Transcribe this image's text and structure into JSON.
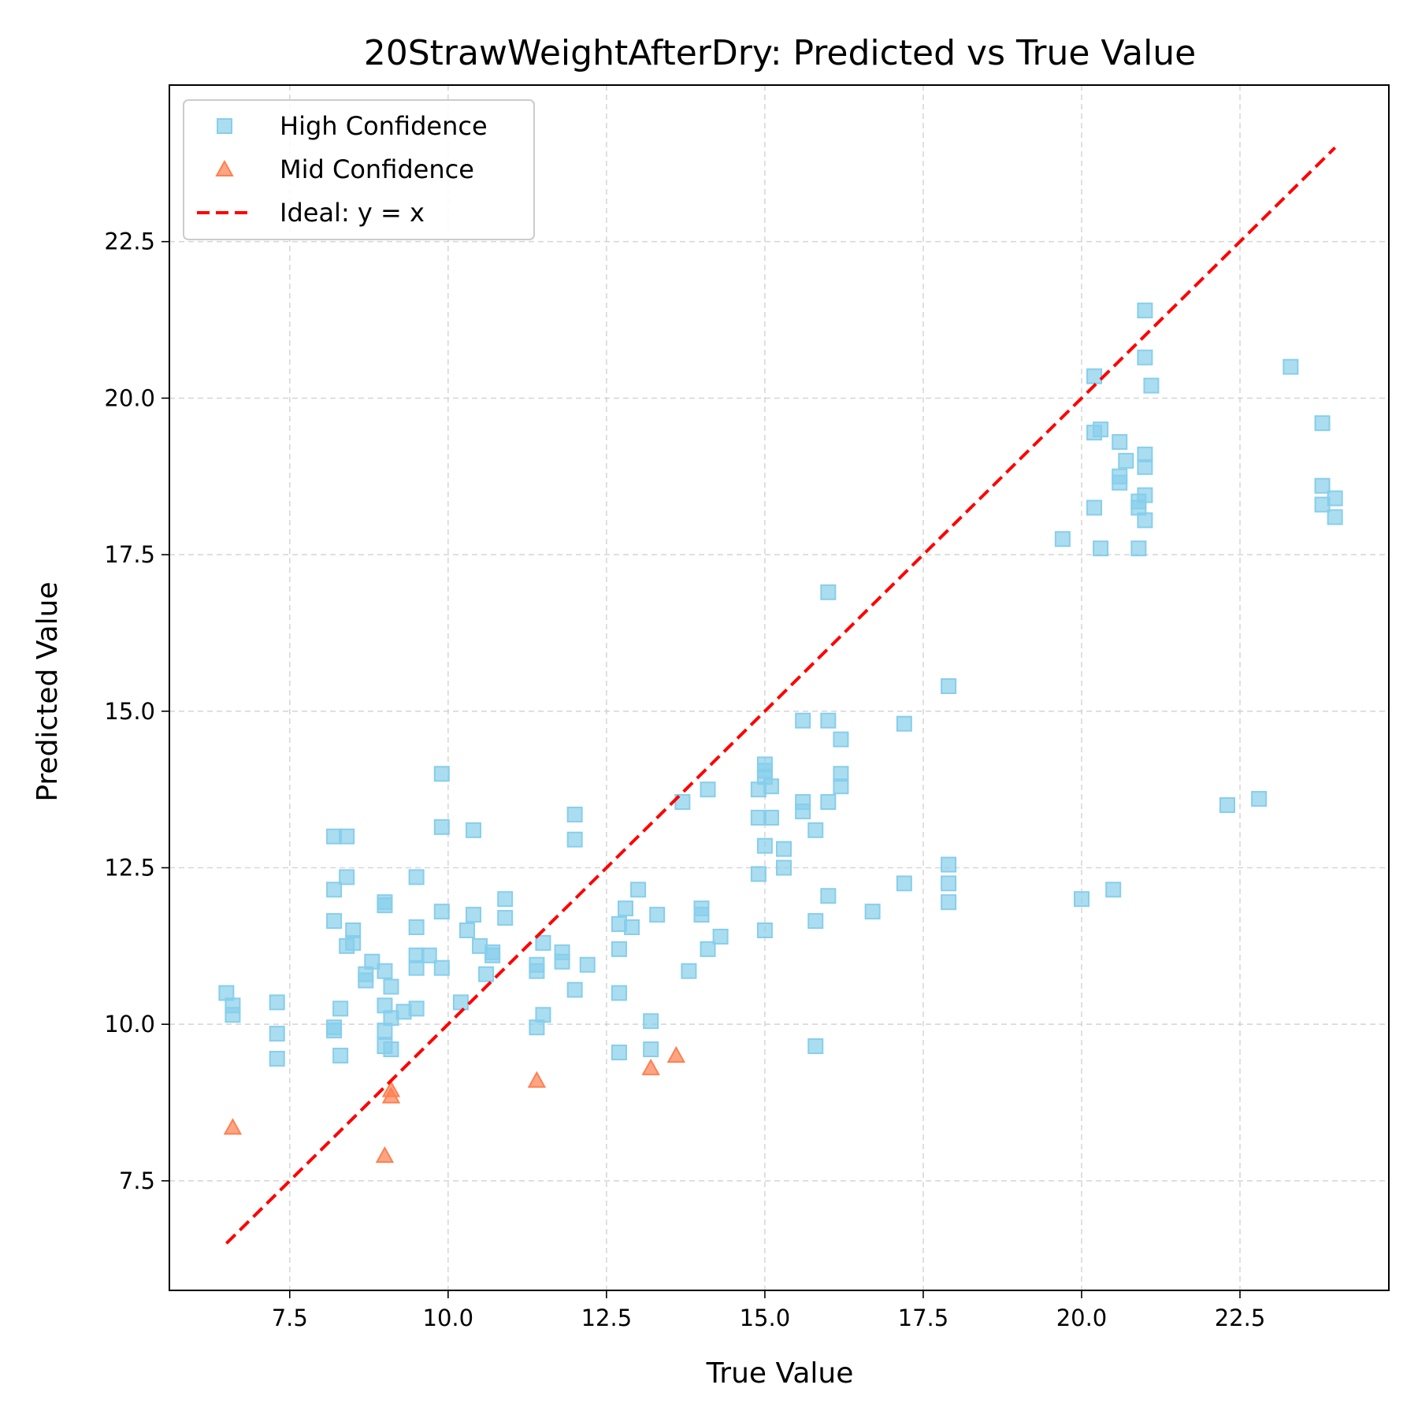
{
  "chart_data": {
    "type": "scatter",
    "title": "20StrawWeightAfterDry: Predicted vs True Value",
    "xlabel": "True Value",
    "ylabel": "Predicted Value",
    "xlim": [
      5.6,
      24.85
    ],
    "ylim": [
      5.75,
      25.0
    ],
    "xticks": [
      7.5,
      10.0,
      12.5,
      15.0,
      17.5,
      20.0,
      22.5
    ],
    "yticks": [
      7.5,
      10.0,
      12.5,
      15.0,
      17.5,
      20.0,
      22.5
    ],
    "xtick_labels": [
      "7.5",
      "10.0",
      "12.5",
      "15.0",
      "17.5",
      "20.0",
      "22.5"
    ],
    "ytick_labels": [
      "7.5",
      "10.0",
      "12.5",
      "15.0",
      "17.5",
      "20.0",
      "22.5"
    ],
    "grid": true,
    "legend_position": "top-left",
    "series": [
      {
        "name": "High Confidence",
        "marker": "square",
        "color": "#87CEEB",
        "points": [
          [
            6.5,
            10.5
          ],
          [
            6.6,
            10.3
          ],
          [
            6.6,
            10.15
          ],
          [
            7.3,
            10.35
          ],
          [
            7.3,
            9.85
          ],
          [
            7.3,
            9.45
          ],
          [
            8.2,
            13.0
          ],
          [
            8.4,
            13.0
          ],
          [
            8.2,
            12.15
          ],
          [
            8.4,
            12.35
          ],
          [
            8.2,
            11.65
          ],
          [
            8.5,
            11.5
          ],
          [
            8.4,
            11.25
          ],
          [
            8.5,
            11.3
          ],
          [
            8.2,
            9.9
          ],
          [
            8.2,
            9.95
          ],
          [
            8.3,
            10.25
          ],
          [
            8.3,
            9.5
          ],
          [
            8.7,
            10.8
          ],
          [
            8.7,
            10.7
          ],
          [
            8.8,
            11.0
          ],
          [
            9.0,
            11.95
          ],
          [
            9.0,
            11.9
          ],
          [
            9.0,
            10.85
          ],
          [
            9.1,
            10.6
          ],
          [
            9.0,
            10.3
          ],
          [
            9.1,
            10.1
          ],
          [
            9.0,
            9.9
          ],
          [
            9.0,
            9.65
          ],
          [
            9.1,
            9.6
          ],
          [
            9.3,
            10.2
          ],
          [
            9.5,
            12.35
          ],
          [
            9.5,
            11.55
          ],
          [
            9.5,
            11.1
          ],
          [
            9.5,
            10.9
          ],
          [
            9.5,
            10.25
          ],
          [
            9.7,
            11.1
          ],
          [
            9.9,
            14.0
          ],
          [
            9.9,
            13.15
          ],
          [
            9.9,
            11.8
          ],
          [
            9.9,
            10.9
          ],
          [
            10.2,
            10.35
          ],
          [
            10.3,
            11.5
          ],
          [
            10.4,
            13.1
          ],
          [
            10.4,
            11.75
          ],
          [
            10.5,
            11.25
          ],
          [
            10.6,
            10.8
          ],
          [
            10.7,
            11.15
          ],
          [
            10.7,
            11.1
          ],
          [
            10.9,
            12.0
          ],
          [
            10.9,
            11.7
          ],
          [
            11.4,
            10.95
          ],
          [
            11.4,
            10.85
          ],
          [
            11.4,
            9.95
          ],
          [
            11.5,
            11.3
          ],
          [
            11.5,
            10.15
          ],
          [
            11.8,
            11.15
          ],
          [
            11.8,
            11.0
          ],
          [
            12.0,
            13.35
          ],
          [
            12.0,
            12.95
          ],
          [
            12.0,
            10.55
          ],
          [
            12.2,
            10.95
          ],
          [
            12.7,
            11.6
          ],
          [
            12.7,
            11.2
          ],
          [
            12.7,
            10.5
          ],
          [
            12.7,
            9.55
          ],
          [
            12.8,
            11.85
          ],
          [
            12.9,
            11.55
          ],
          [
            13.0,
            12.15
          ],
          [
            13.2,
            10.05
          ],
          [
            13.2,
            9.6
          ],
          [
            13.3,
            11.75
          ],
          [
            13.7,
            13.55
          ],
          [
            13.8,
            10.85
          ],
          [
            14.0,
            11.85
          ],
          [
            14.0,
            11.75
          ],
          [
            14.1,
            13.75
          ],
          [
            14.1,
            11.2
          ],
          [
            14.3,
            11.4
          ],
          [
            14.9,
            13.75
          ],
          [
            14.9,
            13.3
          ],
          [
            14.9,
            12.4
          ],
          [
            15.0,
            14.15
          ],
          [
            15.0,
            14.05
          ],
          [
            15.0,
            13.95
          ],
          [
            15.0,
            12.85
          ],
          [
            15.0,
            11.5
          ],
          [
            15.1,
            13.8
          ],
          [
            15.1,
            13.3
          ],
          [
            15.3,
            12.8
          ],
          [
            15.3,
            12.5
          ],
          [
            15.6,
            14.85
          ],
          [
            15.6,
            13.55
          ],
          [
            15.6,
            13.4
          ],
          [
            15.8,
            13.1
          ],
          [
            15.8,
            11.65
          ],
          [
            15.8,
            9.65
          ],
          [
            16.0,
            16.9
          ],
          [
            16.0,
            14.85
          ],
          [
            16.0,
            13.55
          ],
          [
            16.0,
            12.05
          ],
          [
            16.2,
            14.55
          ],
          [
            16.2,
            14.0
          ],
          [
            16.2,
            13.8
          ],
          [
            16.7,
            11.8
          ],
          [
            17.2,
            14.8
          ],
          [
            17.2,
            12.25
          ],
          [
            17.9,
            15.4
          ],
          [
            17.9,
            12.55
          ],
          [
            17.9,
            12.25
          ],
          [
            17.9,
            11.95
          ],
          [
            19.7,
            17.75
          ],
          [
            20.0,
            12.0
          ],
          [
            20.2,
            20.35
          ],
          [
            20.2,
            19.45
          ],
          [
            20.3,
            19.5
          ],
          [
            20.2,
            18.25
          ],
          [
            20.3,
            17.6
          ],
          [
            20.5,
            12.15
          ],
          [
            20.6,
            19.3
          ],
          [
            20.6,
            18.75
          ],
          [
            20.6,
            18.65
          ],
          [
            20.7,
            19.0
          ],
          [
            20.9,
            18.35
          ],
          [
            20.9,
            18.25
          ],
          [
            20.9,
            17.6
          ],
          [
            21.0,
            21.4
          ],
          [
            21.0,
            20.65
          ],
          [
            21.0,
            19.1
          ],
          [
            21.0,
            18.9
          ],
          [
            21.0,
            18.45
          ],
          [
            21.0,
            18.05
          ],
          [
            21.1,
            20.2
          ],
          [
            22.3,
            13.5
          ],
          [
            22.8,
            13.6
          ],
          [
            23.3,
            20.5
          ],
          [
            23.8,
            19.6
          ],
          [
            23.8,
            18.6
          ],
          [
            23.8,
            18.3
          ],
          [
            24.0,
            18.4
          ],
          [
            24.0,
            18.1
          ]
        ]
      },
      {
        "name": "Mid Confidence",
        "marker": "triangle",
        "color": "#FF7F50",
        "points": [
          [
            6.6,
            8.35
          ],
          [
            9.0,
            7.9
          ],
          [
            9.1,
            8.95
          ],
          [
            9.1,
            8.85
          ],
          [
            11.4,
            9.1
          ],
          [
            13.2,
            9.3
          ],
          [
            13.6,
            9.5
          ]
        ]
      },
      {
        "name": "Ideal: y = x",
        "type": "line",
        "style": "dashed",
        "color": "#FF0000",
        "points": [
          [
            6.5,
            6.5
          ],
          [
            24.0,
            24.0
          ]
        ]
      }
    ]
  }
}
